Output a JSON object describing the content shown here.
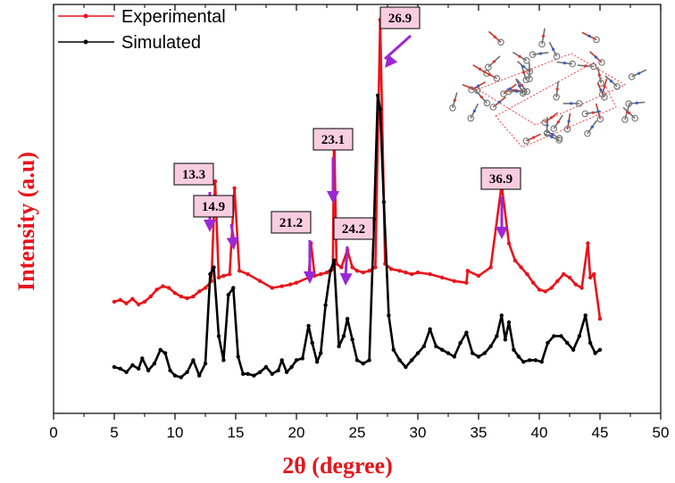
{
  "chart_data": {
    "type": "line",
    "xlabel": "2θ (degree)",
    "ylabel": "Intensity (a.u)",
    "xlim": [
      0,
      50
    ],
    "x_ticks": [
      "0",
      "5",
      "10",
      "15",
      "20",
      "25",
      "30",
      "35",
      "40",
      "45",
      "50"
    ],
    "grid": false,
    "legend_position": "top-left",
    "series": [
      {
        "name": "Experimental",
        "color": "#e8141b",
        "x": [
          5,
          5.5,
          6,
          6.5,
          7,
          7.5,
          8,
          8.5,
          9,
          9.5,
          10,
          10.5,
          11,
          11.5,
          12,
          12.5,
          13,
          13.3,
          13.6,
          14,
          14.5,
          14.9,
          15.3,
          16,
          17,
          18,
          18.8,
          19.5,
          20,
          21,
          21.2,
          21.5,
          22,
          22.5,
          23,
          23.1,
          23.3,
          23.7,
          24.2,
          24.6,
          25,
          25.5,
          26,
          26.5,
          26.9,
          27.3,
          27.8,
          28.5,
          29,
          29.5,
          30,
          31,
          32,
          33,
          34,
          34.1,
          35,
          36,
          36.9,
          37.5,
          38,
          38.5,
          39,
          39.5,
          40,
          40.5,
          41,
          41.5,
          42,
          42.5,
          43,
          43.5,
          44,
          44.2,
          44.5,
          45
        ],
        "values": [
          2.6,
          2.65,
          2.55,
          2.68,
          2.52,
          2.6,
          2.75,
          2.95,
          3.05,
          3.0,
          2.85,
          2.75,
          2.7,
          2.75,
          2.9,
          3.0,
          3.2,
          6.1,
          3.3,
          3.35,
          3.4,
          5.9,
          3.5,
          3.4,
          3.2,
          3.0,
          3.05,
          3.1,
          3.15,
          3.3,
          4.3,
          3.35,
          3.4,
          3.45,
          3.55,
          7.6,
          3.7,
          3.6,
          4.1,
          3.6,
          3.5,
          3.45,
          3.5,
          3.6,
          10.8,
          3.7,
          3.55,
          3.5,
          3.45,
          3.4,
          3.45,
          3.4,
          3.3,
          3.2,
          3.15,
          3.5,
          3.35,
          3.6,
          6.0,
          4.3,
          3.8,
          3.6,
          3.4,
          3.15,
          2.95,
          2.9,
          3.0,
          3.2,
          3.4,
          3.3,
          3.1,
          3.0,
          4.3,
          3.3,
          3.4,
          2.1
        ]
      },
      {
        "name": "Simulated",
        "color": "#000000",
        "x": [
          5,
          5.5,
          6,
          6.5,
          7,
          7.3,
          7.8,
          8.3,
          8.8,
          9.2,
          9.6,
          10,
          10.5,
          11,
          11.5,
          12,
          12.5,
          12.9,
          13.2,
          13.6,
          14,
          14.4,
          14.8,
          15.2,
          15.6,
          16,
          16.5,
          17,
          17.5,
          18,
          18.5,
          18.8,
          19.2,
          19.6,
          20,
          20.5,
          21,
          21.3,
          21.7,
          22,
          22.4,
          22.8,
          23.1,
          23.5,
          23.9,
          24.2,
          24.6,
          25,
          25.5,
          26,
          26.4,
          26.7,
          26.9,
          27.2,
          27.6,
          28,
          28.5,
          29,
          29.5,
          30,
          30.5,
          31,
          31.5,
          32,
          32.5,
          33,
          33.5,
          34,
          34.5,
          35,
          35.5,
          36,
          36.5,
          36.9,
          37.2,
          37.5,
          37.9,
          38.3,
          38.7,
          39.2,
          39.7,
          40.2,
          40.7,
          41.2,
          41.8,
          42.3,
          42.8,
          43.3,
          43.8,
          44.2,
          44.6,
          45
        ],
        "values": [
          0.7,
          0.65,
          0.55,
          0.75,
          0.65,
          0.95,
          0.6,
          0.8,
          1.2,
          1.1,
          0.6,
          0.45,
          0.4,
          0.55,
          0.9,
          0.45,
          0.8,
          3.4,
          3.6,
          1.6,
          0.9,
          2.8,
          3.0,
          1.0,
          0.5,
          0.5,
          0.45,
          0.55,
          0.7,
          0.5,
          0.6,
          0.9,
          0.55,
          0.7,
          0.9,
          0.95,
          1.9,
          1.4,
          0.85,
          1.1,
          2.5,
          3.5,
          3.8,
          1.3,
          1.6,
          2.1,
          1.5,
          0.9,
          0.8,
          0.9,
          5.0,
          8.6,
          8.2,
          5.5,
          2.2,
          1.2,
          0.9,
          0.7,
          0.9,
          1.1,
          1.3,
          1.8,
          1.3,
          1.2,
          1.1,
          1.0,
          1.4,
          1.7,
          1.1,
          1.0,
          1.1,
          1.3,
          1.6,
          2.2,
          1.5,
          2.0,
          1.2,
          1.0,
          0.85,
          0.9,
          0.9,
          0.85,
          1.4,
          1.6,
          1.6,
          1.4,
          1.2,
          1.6,
          2.2,
          1.4,
          1.1,
          1.2
        ]
      }
    ],
    "annotations": [
      {
        "label": "13.3",
        "x": 13.3
      },
      {
        "label": "14.9",
        "x": 14.9
      },
      {
        "label": "21.2",
        "x": 21.2
      },
      {
        "label": "23.1",
        "x": 23.1
      },
      {
        "label": "24.2",
        "x": 24.2
      },
      {
        "label": "26.9",
        "x": 26.9
      },
      {
        "label": "36.9",
        "x": 36.9
      }
    ],
    "annotation_fill": "#f9cde0",
    "arrow_color": "#9b27d6"
  }
}
